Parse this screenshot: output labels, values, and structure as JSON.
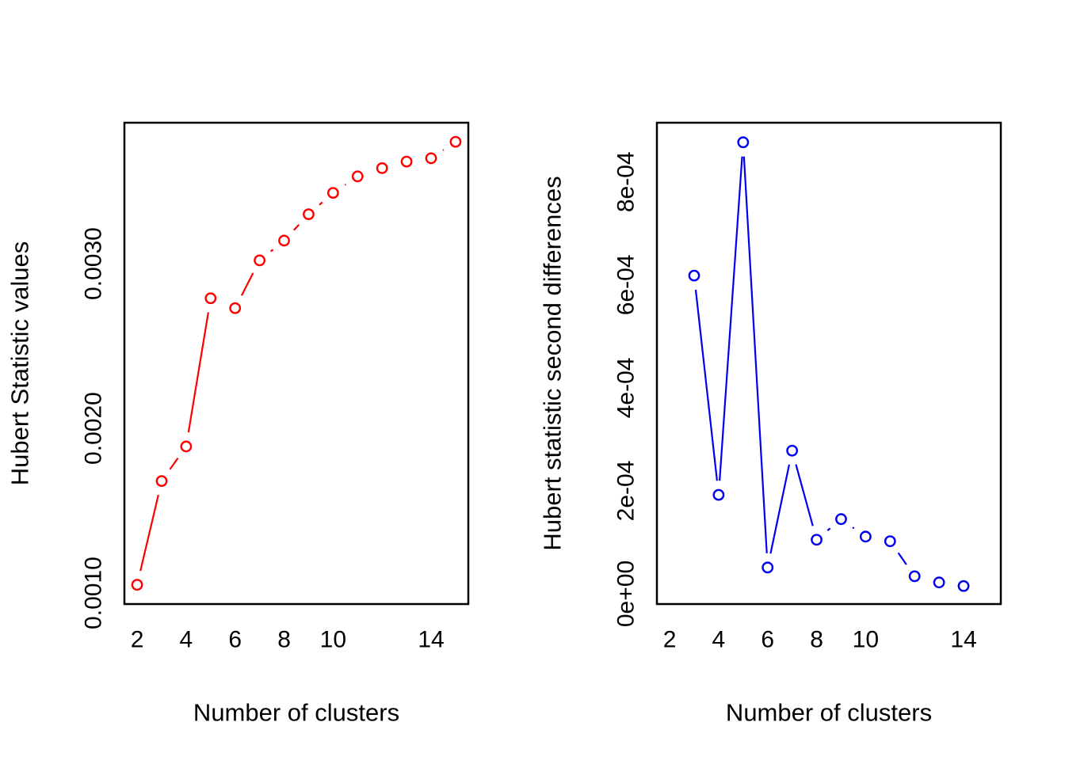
{
  "figure": {
    "background": "#ffffff",
    "axis_color": "#000000",
    "left_series_color": "#ff0000",
    "right_series_color": "#0000ee"
  },
  "chart_data": [
    {
      "type": "line",
      "title": "",
      "xlabel": "Number of clusters",
      "ylabel": "Hubert Statistic values",
      "color": "#ff0000",
      "marker": "open-circle",
      "line_style": "points-and-segments",
      "grid": false,
      "legend": null,
      "x": [
        2,
        3,
        4,
        5,
        6,
        7,
        8,
        9,
        10,
        11,
        12,
        13,
        14,
        15
      ],
      "y": [
        0.00105,
        0.00168,
        0.00189,
        0.00279,
        0.00273,
        0.00302,
        0.00314,
        0.0033,
        0.00343,
        0.00353,
        0.00358,
        0.00362,
        0.00364,
        0.00374
      ],
      "xticks": [
        2,
        4,
        6,
        8,
        10,
        14
      ],
      "xtick_labels": [
        "2",
        "4",
        "6",
        "8",
        "10",
        "14"
      ],
      "yticks": [
        0.001,
        0.002,
        0.003
      ],
      "ytick_labels": [
        "0.0010",
        "0.0020",
        "0.0030"
      ],
      "xlim": [
        1.48,
        15.52
      ],
      "ylim": [
        0.000933,
        0.003856
      ]
    },
    {
      "type": "line",
      "title": "",
      "xlabel": "Number of clusters",
      "ylabel": "Hubert statistic second differences",
      "color": "#0000ee",
      "marker": "open-circle",
      "line_style": "points-and-segments",
      "grid": false,
      "legend": null,
      "x": [
        3,
        4,
        5,
        6,
        7,
        8,
        9,
        10,
        11,
        12,
        13,
        14
      ],
      "y": [
        0.000618,
        0.000192,
        0.000877,
        5.1e-05,
        0.000278,
        0.000105,
        0.000145,
        0.000111,
        0.000102,
        3.4e-05,
        2.2e-05,
        1.5e-05
      ],
      "xticks": [
        2,
        4,
        6,
        8,
        10,
        14
      ],
      "xtick_labels": [
        "2",
        "4",
        "6",
        "8",
        "10",
        "14"
      ],
      "yticks": [
        0,
        0.0002,
        0.0004,
        0.0006,
        0.0008
      ],
      "ytick_labels": [
        "0e+00",
        "2e-04",
        "4e-04",
        "6e-04",
        "8e-04"
      ],
      "xlim": [
        1.48,
        15.52
      ],
      "ylim": [
        -2e-05,
        0.000915
      ]
    }
  ]
}
